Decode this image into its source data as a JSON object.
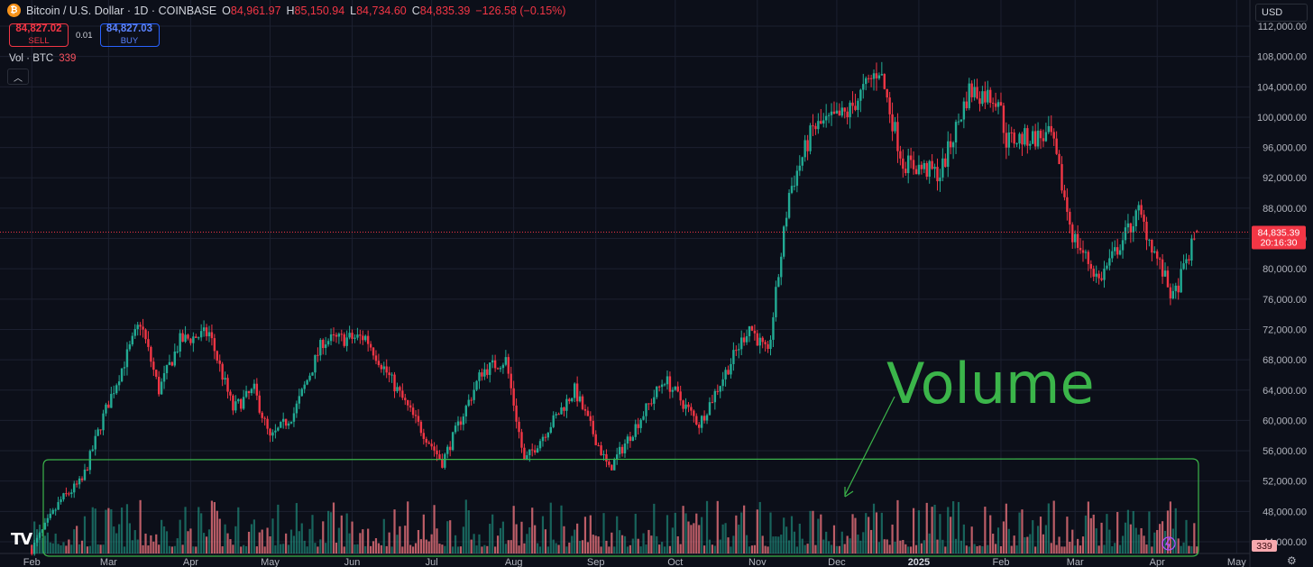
{
  "header": {
    "symbol_title": "Bitcoin / U.S. Dollar · 1D · COINBASE",
    "open_label": "O",
    "open_value": "84,961.97",
    "high_label": "H",
    "high_value": "85,150.94",
    "low_label": "L",
    "low_value": "84,734.60",
    "close_label": "C",
    "close_value": "84,835.39",
    "change": "−126.58 (−0.15%)"
  },
  "trade": {
    "sell_price": "84,827.02",
    "sell_label": "SELL",
    "spread": "0.01",
    "buy_price": "84,827.03",
    "buy_label": "BUY"
  },
  "volume_indicator": {
    "label": "Vol · BTC",
    "value": "339"
  },
  "collapse_icon": "chevron-up-icon",
  "currency_selector": "USD",
  "price_tag": {
    "price": "84,835.39",
    "countdown": "20:16:30"
  },
  "volume_tag": "339",
  "annotation": {
    "text": "Volume",
    "color": "#3bb54a"
  },
  "colors": {
    "up": "#22ab94",
    "down": "#f23645",
    "background": "#0c0f19",
    "grid": "#1c2030",
    "annotation": "#3bb54a"
  },
  "chart_data": {
    "type": "candlestick",
    "title": "Bitcoin / U.S. Dollar · 1D · COINBASE",
    "y_ticks": [
      "44,000.00",
      "48,000.00",
      "52,000.00",
      "56,000.00",
      "60,000.00",
      "64,000.00",
      "68,000.00",
      "72,000.00",
      "76,000.00",
      "80,000.00",
      "84,000.00",
      "88,000.00",
      "92,000.00",
      "96,000.00",
      "100,000.00",
      "104,000.00",
      "108,000.00",
      "112,000.00"
    ],
    "y_tick_values": [
      44000,
      48000,
      52000,
      56000,
      60000,
      64000,
      68000,
      72000,
      76000,
      80000,
      84000,
      88000,
      92000,
      96000,
      100000,
      104000,
      108000,
      112000
    ],
    "x_ticks": [
      "Feb",
      "Mar",
      "Apr",
      "May",
      "Jun",
      "Jul",
      "Aug",
      "Sep",
      "Oct",
      "Nov",
      "Dec",
      "2025",
      "Feb",
      "Mar",
      "Apr",
      "May"
    ],
    "x_tick_dates": [
      "2024-02-01",
      "2024-03-01",
      "2024-04-01",
      "2024-05-01",
      "2024-06-01",
      "2024-07-01",
      "2024-08-01",
      "2024-09-01",
      "2024-10-01",
      "2024-11-01",
      "2024-12-01",
      "2025-01-01",
      "2025-02-01",
      "2025-03-01",
      "2025-04-01",
      "2025-05-01"
    ],
    "ylim": [
      41500,
      114500
    ],
    "date_range": [
      "2024-01-20",
      "2025-05-06"
    ],
    "last_price": 84835.39,
    "price_path": [
      [
        "2024-02-01",
        43000
      ],
      [
        "2024-02-12",
        49500
      ],
      [
        "2024-02-20",
        52000
      ],
      [
        "2024-02-28",
        60500
      ],
      [
        "2024-03-05",
        66000
      ],
      [
        "2024-03-13",
        73000
      ],
      [
        "2024-03-20",
        64000
      ],
      [
        "2024-03-28",
        70500
      ],
      [
        "2024-04-08",
        71500
      ],
      [
        "2024-04-17",
        61500
      ],
      [
        "2024-04-25",
        64000
      ],
      [
        "2024-05-01",
        57500
      ],
      [
        "2024-05-10",
        61000
      ],
      [
        "2024-05-21",
        70500
      ],
      [
        "2024-06-06",
        71000
      ],
      [
        "2024-06-24",
        60500
      ],
      [
        "2024-07-05",
        54500
      ],
      [
        "2024-07-20",
        66500
      ],
      [
        "2024-07-29",
        68000
      ],
      [
        "2024-08-05",
        54500
      ],
      [
        "2024-08-24",
        64000
      ],
      [
        "2024-09-06",
        53500
      ],
      [
        "2024-09-27",
        65500
      ],
      [
        "2024-10-10",
        59500
      ],
      [
        "2024-10-29",
        72500
      ],
      [
        "2024-11-05",
        68500
      ],
      [
        "2024-11-13",
        90000
      ],
      [
        "2024-11-22",
        98500
      ],
      [
        "2024-12-05",
        100500
      ],
      [
        "2024-12-17",
        106500
      ],
      [
        "2024-12-26",
        94000
      ],
      [
        "2025-01-09",
        92500
      ],
      [
        "2025-01-20",
        103500
      ],
      [
        "2025-01-31",
        102500
      ],
      [
        "2025-02-03",
        97000
      ],
      [
        "2025-02-20",
        97500
      ],
      [
        "2025-02-28",
        84500
      ],
      [
        "2025-03-10",
        78500
      ],
      [
        "2025-03-25",
        87500
      ],
      [
        "2025-04-07",
        76000
      ],
      [
        "2025-04-16",
        84835
      ]
    ],
    "volume_scale": "0 – 1 relative to the tallest bar"
  }
}
